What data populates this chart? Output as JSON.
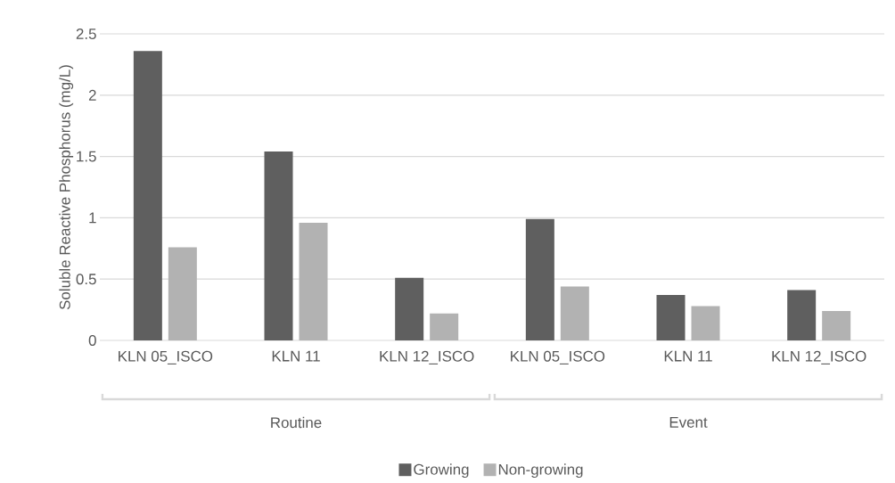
{
  "chart_data": {
    "type": "bar",
    "ylabel": "Soluble Reactive Phosphorus (mg/L)",
    "categories": [
      "KLN 05_ISCO",
      "KLN 11",
      "KLN 12_ISCO",
      "KLN 05_ISCO",
      "KLN 11",
      "KLN 12_ISCO"
    ],
    "series": [
      {
        "name": "Growing",
        "color": "#5f5f5f",
        "values": [
          2.36,
          1.54,
          0.51,
          0.99,
          0.37,
          0.41
        ]
      },
      {
        "name": "Non-growing",
        "color": "#b2b2b2",
        "values": [
          0.76,
          0.96,
          0.22,
          0.44,
          0.28,
          0.24
        ]
      }
    ],
    "annotations": [
      "Routine",
      "Event"
    ],
    "ylim": [
      0,
      2.5
    ],
    "yticks": [
      0,
      0.5,
      1,
      1.5,
      2,
      2.5
    ],
    "grid": "y",
    "legend": "bottom"
  }
}
